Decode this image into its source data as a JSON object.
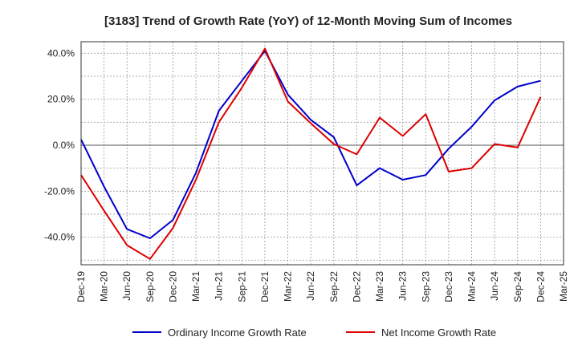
{
  "chart_data": {
    "type": "line",
    "title": "[3183]  Trend of Growth Rate (YoY) of 12-Month Moving Sum of Incomes",
    "xlabel": "",
    "ylabel": "",
    "x": [
      "Dec-19",
      "Mar-20",
      "Jun-20",
      "Sep-20",
      "Dec-20",
      "Mar-21",
      "Jun-21",
      "Sep-21",
      "Dec-21",
      "Mar-22",
      "Jun-22",
      "Sep-22",
      "Dec-22",
      "Mar-23",
      "Jun-23",
      "Sep-23",
      "Dec-23",
      "Mar-24",
      "Jun-24",
      "Sep-24",
      "Dec-24",
      "Mar-25"
    ],
    "y_ticks": [
      40,
      20,
      0,
      -20,
      -40
    ],
    "y_tick_labels": [
      "40.0%",
      "20.0%",
      "0.0%",
      "-20.0%",
      "-40.0%"
    ],
    "ylim": [
      -52,
      45
    ],
    "grid": true,
    "legend_position": "bottom",
    "series": [
      {
        "name": "Ordinary Income Growth Rate",
        "color": "#0000cc",
        "values": [
          2.5,
          -18,
          -36.5,
          -40.5,
          -32.5,
          -12,
          15,
          28,
          41,
          22,
          11,
          3.5,
          -17.5,
          -10,
          -15,
          -13,
          -1.5,
          8,
          19.5,
          25.5,
          28,
          null
        ]
      },
      {
        "name": "Net Income Growth Rate",
        "color": "#dd0000",
        "values": [
          -13,
          -28.5,
          -43.5,
          -49.5,
          -36,
          -15,
          10,
          25,
          42,
          19,
          9.5,
          0.5,
          -4,
          12,
          4,
          13.5,
          -11.5,
          -10,
          0.5,
          -1,
          21,
          null
        ]
      }
    ]
  }
}
